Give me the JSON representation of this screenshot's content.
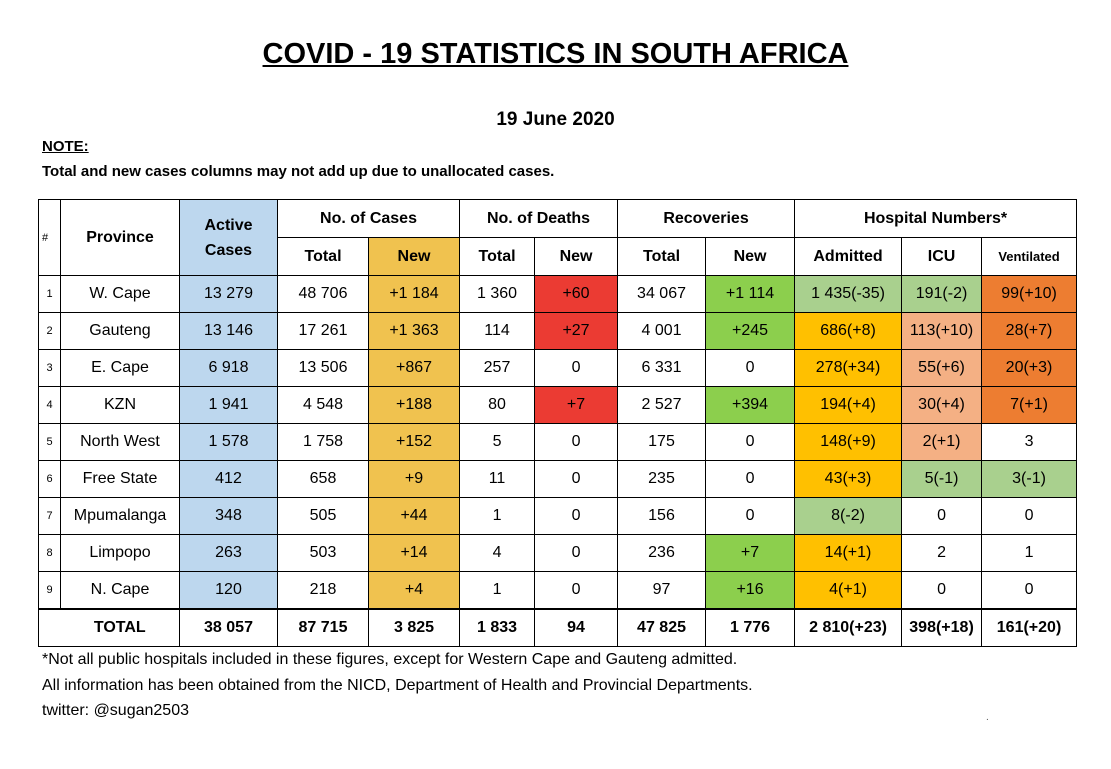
{
  "title": "COVID - 19 STATISTICS IN SOUTH AFRICA",
  "date": "19 June 2020",
  "note_heading": "NOTE:",
  "note_text": "Total and new cases columns may not add up due to unallocated cases.",
  "headers": {
    "idx": "#",
    "province": "Province",
    "active": "Active Cases",
    "cases": "No. of Cases",
    "deaths": "No. of Deaths",
    "recoveries": "Recoveries",
    "hospital": "Hospital Numbers*",
    "total": "Total",
    "new": "New",
    "admitted": "Admitted",
    "icu": "ICU",
    "ventilated": "Ventilated"
  },
  "colors": {
    "blue": "#bdd7ee",
    "gold": "#f0c24f",
    "red": "#eb3b33",
    "green": "#8ccf4d",
    "lightgreen": "#a9d08e",
    "amber": "#ffc000",
    "peach": "#f4b084",
    "orange": "#ed7d31"
  },
  "rows": [
    {
      "idx": "1",
      "province": "W. Cape",
      "active": "13 279",
      "cases_total": "48 706",
      "cases_new": "+1 184",
      "deaths_total": "1 360",
      "deaths_new": "+60",
      "rec_total": "34 067",
      "rec_new": "+1 114",
      "admitted": "1 435(-35)",
      "icu": "191(-2)",
      "ventilated": "99(+10)",
      "c": {
        "deaths_new": "red",
        "rec_new": "green",
        "admitted": "lightgreen",
        "icu": "lightgreen",
        "ventilated": "orange"
      }
    },
    {
      "idx": "2",
      "province": "Gauteng",
      "active": "13 146",
      "cases_total": "17 261",
      "cases_new": "+1 363",
      "deaths_total": "114",
      "deaths_new": "+27",
      "rec_total": "4 001",
      "rec_new": "+245",
      "admitted": "686(+8)",
      "icu": "113(+10)",
      "ventilated": "28(+7)",
      "c": {
        "deaths_new": "red",
        "rec_new": "green",
        "admitted": "amber",
        "icu": "peach",
        "ventilated": "orange"
      }
    },
    {
      "idx": "3",
      "province": "E. Cape",
      "active": "6 918",
      "cases_total": "13 506",
      "cases_new": "+867",
      "deaths_total": "257",
      "deaths_new": "0",
      "rec_total": "6 331",
      "rec_new": "0",
      "admitted": "278(+34)",
      "icu": "55(+6)",
      "ventilated": "20(+3)",
      "c": {
        "admitted": "amber",
        "icu": "peach",
        "ventilated": "orange"
      }
    },
    {
      "idx": "4",
      "province": "KZN",
      "active": "1 941",
      "cases_total": "4 548",
      "cases_new": "+188",
      "deaths_total": "80",
      "deaths_new": "+7",
      "rec_total": "2 527",
      "rec_new": "+394",
      "admitted": "194(+4)",
      "icu": "30(+4)",
      "ventilated": "7(+1)",
      "c": {
        "deaths_new": "red",
        "rec_new": "green",
        "admitted": "amber",
        "icu": "peach",
        "ventilated": "orange"
      }
    },
    {
      "idx": "5",
      "province": "North West",
      "active": "1 578",
      "cases_total": "1 758",
      "cases_new": "+152",
      "deaths_total": "5",
      "deaths_new": "0",
      "rec_total": "175",
      "rec_new": "0",
      "admitted": "148(+9)",
      "icu": "2(+1)",
      "ventilated": "3",
      "c": {
        "admitted": "amber",
        "icu": "peach"
      }
    },
    {
      "idx": "6",
      "province": "Free State",
      "active": "412",
      "cases_total": "658",
      "cases_new": "+9",
      "deaths_total": "11",
      "deaths_new": "0",
      "rec_total": "235",
      "rec_new": "0",
      "admitted": "43(+3)",
      "icu": "5(-1)",
      "ventilated": "3(-1)",
      "c": {
        "admitted": "amber",
        "icu": "lightgreen",
        "ventilated": "lightgreen"
      }
    },
    {
      "idx": "7",
      "province": "Mpumalanga",
      "active": "348",
      "cases_total": "505",
      "cases_new": "+44",
      "deaths_total": "1",
      "deaths_new": "0",
      "rec_total": "156",
      "rec_new": "0",
      "admitted": "8(-2)",
      "icu": "0",
      "ventilated": "0",
      "c": {
        "admitted": "lightgreen"
      }
    },
    {
      "idx": "8",
      "province": "Limpopo",
      "active": "263",
      "cases_total": "503",
      "cases_new": "+14",
      "deaths_total": "4",
      "deaths_new": "0",
      "rec_total": "236",
      "rec_new": "+7",
      "admitted": "14(+1)",
      "icu": "2",
      "ventilated": "1",
      "c": {
        "rec_new": "green",
        "admitted": "amber"
      }
    },
    {
      "idx": "9",
      "province": "N. Cape",
      "active": "120",
      "cases_total": "218",
      "cases_new": "+4",
      "deaths_total": "1",
      "deaths_new": "0",
      "rec_total": "97",
      "rec_new": "+16",
      "admitted": "4(+1)",
      "icu": "0",
      "ventilated": "0",
      "c": {
        "rec_new": "green",
        "admitted": "amber"
      }
    }
  ],
  "total": {
    "label": "TOTAL",
    "active": "38 057",
    "cases_total": "87 715",
    "cases_new": "3 825",
    "deaths_total": "1 833",
    "deaths_new": "94",
    "rec_total": "47 825",
    "rec_new": "1 776",
    "admitted": "2 810(+23)",
    "icu": "398(+18)",
    "ventilated": "161(+20)"
  },
  "footnotes": [
    "*Not all public hospitals included in these figures, except for Western Cape and Gauteng admitted.",
    "All information has been obtained from the NICD, Department of Health and Provincial Departments.",
    "twitter: @sugan2503"
  ],
  "stray_mark": "."
}
